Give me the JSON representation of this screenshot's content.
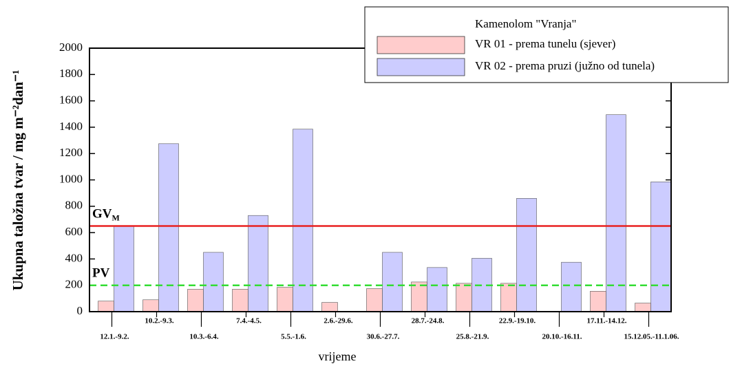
{
  "chart_data": {
    "type": "bar",
    "legend_title": "Kamenolom \"Vranja\"",
    "y_label": "Ukupna taložna tvar / mg m⁻²dan⁻¹",
    "x_label": "vrijeme",
    "categories": [
      "12.1.-9.2.",
      "10.2.-9.3.",
      "10.3.-6.4.",
      "7.4.-4.5.",
      "5.5.-1.6.",
      "2.6.-29.6.",
      "30.6.-27.7.",
      "28.7.-24.8.",
      "25.8.-21.9.",
      "22.9.-19.10.",
      "20.10.-16.11.",
      "17.11.-14.12.",
      "15.12.05.-11.1.06."
    ],
    "series": [
      {
        "name": "VR 01 - prema tunelu (sjever)",
        "color": "#ffcccc",
        "values": [
          80,
          90,
          170,
          170,
          185,
          70,
          175,
          225,
          215,
          215,
          null,
          155,
          65
        ]
      },
      {
        "name": "VR 02 - prema pruzi (južno od tunela)",
        "color": "#ccccff",
        "values": [
          650,
          1275,
          450,
          730,
          1385,
          null,
          450,
          335,
          405,
          860,
          375,
          1495,
          985
        ]
      }
    ],
    "reference_lines": [
      {
        "text": "GV",
        "subscript": "M",
        "value": 650,
        "color": "#e82020",
        "dashed": false
      },
      {
        "text": "PV",
        "value": 200,
        "color": "#33dd33",
        "dashed": true
      }
    ],
    "ylim": [
      0,
      2000
    ],
    "yticks": [
      0,
      200,
      400,
      600,
      800,
      1000,
      1200,
      1400,
      1600,
      1800,
      2000
    ]
  }
}
